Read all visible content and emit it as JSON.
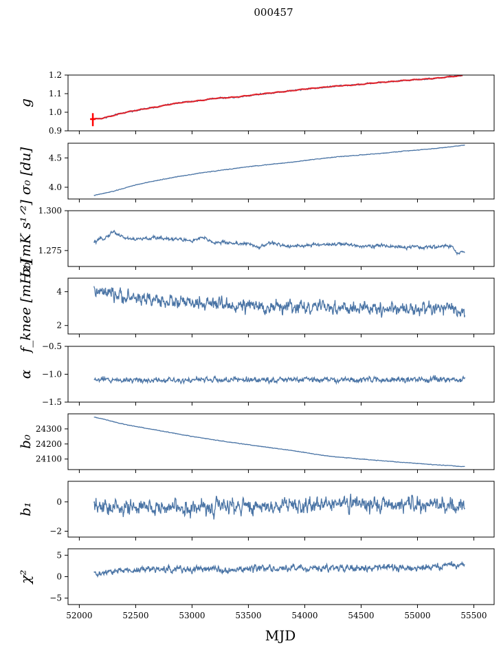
{
  "figure": {
    "suptitle": "000457",
    "xlabel": "MJD"
  },
  "colors": {
    "series": "#4a74a5",
    "overlay": "#ff0000",
    "axes": "#000000"
  },
  "chart_data": [
    {
      "type": "line",
      "key": "g",
      "ylabel": "g",
      "xlim": [
        51900,
        55680
      ],
      "ylim": [
        0.9,
        1.2
      ],
      "yticks": [
        0.9,
        1.0,
        1.1,
        1.2
      ],
      "ytick_labels": [
        "0.9",
        "1.0",
        "1.1",
        "1.2"
      ],
      "x": [
        52120,
        52200,
        52300,
        52400,
        52500,
        52600,
        52700,
        52800,
        52900,
        53000,
        53100,
        53200,
        53300,
        53400,
        53500,
        53600,
        53700,
        53800,
        53900,
        54000,
        54100,
        54200,
        54300,
        54400,
        54500,
        54600,
        54700,
        54800,
        54900,
        55000,
        55100,
        55200,
        55300,
        55400
      ],
      "y": [
        0.963,
        0.967,
        0.982,
        0.998,
        1.01,
        1.02,
        1.03,
        1.042,
        1.052,
        1.058,
        1.065,
        1.075,
        1.078,
        1.082,
        1.09,
        1.097,
        1.104,
        1.11,
        1.117,
        1.125,
        1.13,
        1.136,
        1.142,
        1.145,
        1.15,
        1.157,
        1.162,
        1.166,
        1.172,
        1.176,
        1.18,
        1.185,
        1.192,
        1.197
      ],
      "noise": 0.003,
      "overlay": {
        "name": "",
        "error_mjd": 52120,
        "error_range": [
          0.925,
          0.995
        ]
      }
    },
    {
      "type": "line",
      "key": "sigma0_du",
      "ylabel": "σ₀ [du]",
      "xlim": [
        51900,
        55680
      ],
      "ylim": [
        3.8,
        4.75
      ],
      "yticks": [
        4.0,
        4.5
      ],
      "ytick_labels": [
        "4.0",
        "4.5"
      ],
      "x": [
        52130,
        52300,
        52500,
        52700,
        52900,
        53100,
        53300,
        53500,
        53700,
        53900,
        54100,
        54300,
        54500,
        54700,
        54900,
        55100,
        55300,
        55420
      ],
      "y": [
        3.86,
        3.93,
        4.04,
        4.12,
        4.19,
        4.25,
        4.3,
        4.35,
        4.39,
        4.43,
        4.48,
        4.52,
        4.55,
        4.58,
        4.62,
        4.65,
        4.69,
        4.72
      ],
      "noise": 0.004
    },
    {
      "type": "line",
      "key": "sigma0_mk",
      "ylabel": "σ₀[mK s¹ᐟ²]",
      "xlim": [
        51900,
        55680
      ],
      "ylim": [
        1.265,
        1.3
      ],
      "yticks": [
        1.275,
        1.3
      ],
      "ytick_labels": [
        "1.275",
        "1.300"
      ],
      "x": [
        52130,
        52250,
        52300,
        52400,
        52500,
        52700,
        52900,
        53000,
        53100,
        53200,
        53300,
        53500,
        53600,
        53700,
        53800,
        54000,
        54200,
        54300,
        54500,
        54700,
        54900,
        55100,
        55300,
        55350,
        55420
      ],
      "y": [
        1.28,
        1.284,
        1.287,
        1.283,
        1.282,
        1.283,
        1.282,
        1.281,
        1.283,
        1.28,
        1.28,
        1.279,
        1.277,
        1.28,
        1.278,
        1.278,
        1.279,
        1.279,
        1.278,
        1.278,
        1.277,
        1.277,
        1.278,
        1.273,
        1.274
      ],
      "noise": 0.0009
    },
    {
      "type": "line",
      "key": "fknee",
      "ylabel": "f_knee [mHz]",
      "xlim": [
        51900,
        55680
      ],
      "ylim": [
        1.5,
        4.8
      ],
      "yticks": [
        2,
        4
      ],
      "ytick_labels": [
        "2",
        "4"
      ],
      "x": [
        52130,
        52400,
        52700,
        53000,
        53300,
        53600,
        54000,
        54400,
        54800,
        55200,
        55420
      ],
      "y": [
        4.0,
        3.7,
        3.5,
        3.3,
        3.2,
        3.1,
        3.1,
        3.0,
        3.0,
        3.0,
        2.8
      ],
      "noise": 0.32
    },
    {
      "type": "line",
      "key": "alpha",
      "ylabel": "α",
      "xlim": [
        51900,
        55680
      ],
      "ylim": [
        -1.5,
        -0.5
      ],
      "yticks": [
        -1.5,
        -1.0,
        -0.5
      ],
      "ytick_labels": [
        "−1.5",
        "−1.0",
        "−0.5"
      ],
      "x": [
        52130,
        53000,
        54000,
        55000,
        55420
      ],
      "y": [
        -1.1,
        -1.1,
        -1.1,
        -1.1,
        -1.1
      ],
      "noise": 0.04
    },
    {
      "type": "line",
      "key": "b0",
      "ylabel": "b₀",
      "xlim": [
        51900,
        55680
      ],
      "ylim": [
        24030,
        24400
      ],
      "yticks": [
        24100,
        24200,
        24300
      ],
      "ytick_labels": [
        "24100",
        "24200",
        "24300"
      ],
      "x": [
        52130,
        52200,
        52400,
        52700,
        53000,
        53300,
        53600,
        53900,
        54200,
        54500,
        54800,
        55100,
        55420
      ],
      "y": [
        24378,
        24368,
        24330,
        24290,
        24250,
        24215,
        24185,
        24155,
        24120,
        24100,
        24082,
        24065,
        24050
      ],
      "noise": 1.5
    },
    {
      "type": "line",
      "key": "b1",
      "ylabel": "b₁",
      "xlim": [
        51900,
        55680
      ],
      "ylim": [
        -2.4,
        1.4
      ],
      "yticks": [
        -2,
        0
      ],
      "ytick_labels": [
        "−2",
        "0"
      ],
      "x": [
        52130,
        53000,
        54000,
        55000,
        55420
      ],
      "y": [
        -0.4,
        -0.4,
        -0.2,
        -0.2,
        -0.3
      ],
      "noise": 0.45
    },
    {
      "type": "line",
      "key": "chi2",
      "ylabel": "χ²",
      "xlim": [
        51900,
        55680
      ],
      "ylim": [
        -6.5,
        6.5
      ],
      "yticks": [
        -5,
        0,
        5
      ],
      "ytick_labels": [
        "−5",
        "0",
        "5"
      ],
      "x": [
        52130,
        52400,
        52800,
        53200,
        53600,
        54000,
        54400,
        54800,
        55200,
        55420
      ],
      "y": [
        0.5,
        1.5,
        1.8,
        1.7,
        1.8,
        2.0,
        1.9,
        2.0,
        2.2,
        3.0
      ],
      "noise": 0.65
    }
  ],
  "xaxis": {
    "ticks": [
      52000,
      52500,
      53000,
      53500,
      54000,
      54500,
      55000,
      55500
    ],
    "tick_labels": [
      "52000",
      "52500",
      "53000",
      "53500",
      "54000",
      "54500",
      "55000",
      "55500"
    ]
  }
}
